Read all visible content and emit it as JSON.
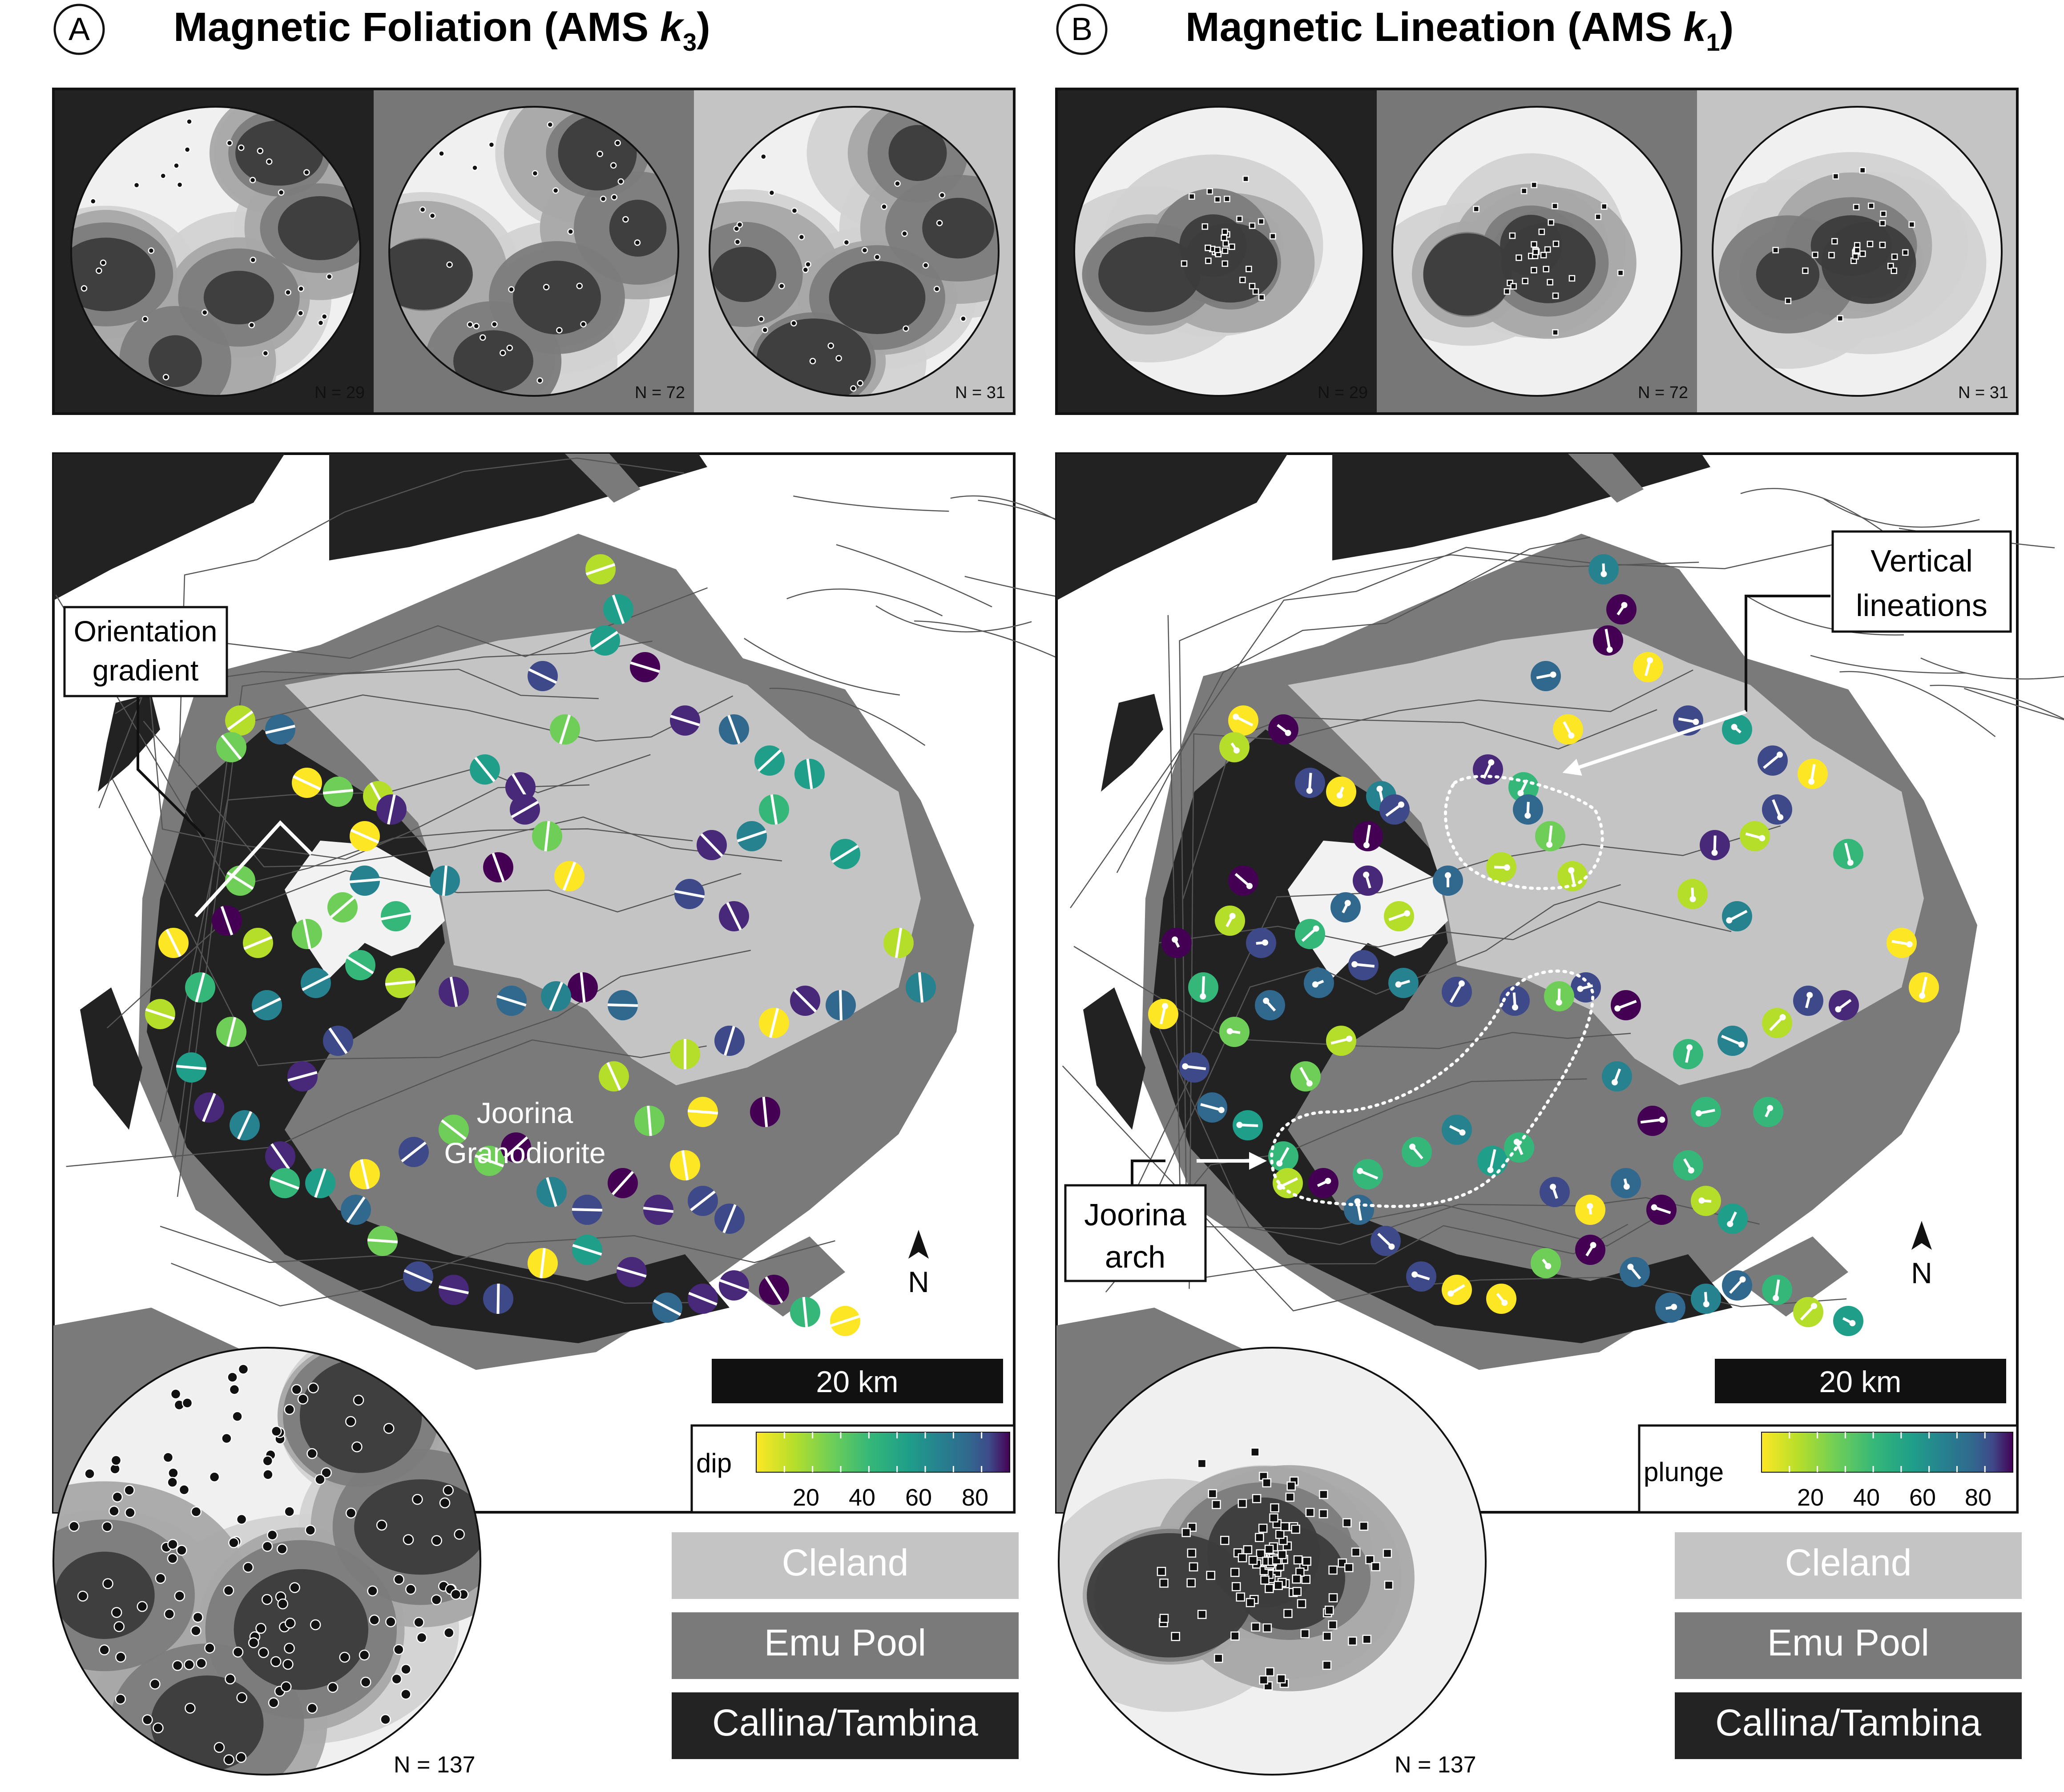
{
  "panels": [
    {
      "letter": "A",
      "title_main": "Magnetic Foliation (AMS ",
      "title_var": "k",
      "title_sub": "3",
      "title_close": ")",
      "stereonets": [
        {
          "count_label": "N = 29",
          "background": "#222222",
          "pattern": "foliation-1"
        },
        {
          "count_label": "N = 72",
          "background": "#777777",
          "pattern": "foliation-2"
        },
        {
          "count_label": "N = 31",
          "background": "#c4c4c4",
          "pattern": "foliation-3"
        }
      ],
      "marker": "circle",
      "annotations": [
        {
          "lines": [
            "Orientation",
            "gradient"
          ]
        }
      ],
      "interior_label": [
        "Joorina",
        "Granodiorite"
      ],
      "scale_bar": "20 km",
      "north": "N",
      "colorbar": {
        "label": "dip",
        "ticks": [
          "20",
          "40",
          "60",
          "80"
        ]
      },
      "summary_count": "N = 137"
    },
    {
      "letter": "B",
      "title_main": "Magnetic Lineation (AMS ",
      "title_var": "k",
      "title_sub": "1",
      "title_close": ")",
      "stereonets": [
        {
          "count_label": "N = 29",
          "background": "#222222",
          "pattern": "lineation-1"
        },
        {
          "count_label": "N = 72",
          "background": "#777777",
          "pattern": "lineation-2"
        },
        {
          "count_label": "N = 31",
          "background": "#c4c4c4",
          "pattern": "lineation-3"
        }
      ],
      "marker": "square",
      "annotations": [
        {
          "lines": [
            "Vertical",
            "lineations"
          ]
        },
        {
          "lines": [
            "Joorina",
            "arch"
          ]
        }
      ],
      "scale_bar": "20 km",
      "north": "N",
      "colorbar": {
        "label": "plunge",
        "ticks": [
          "20",
          "40",
          "60",
          "80"
        ]
      },
      "summary_count": "N = 137"
    }
  ],
  "legend": [
    {
      "label": "Cleland",
      "color": "#c4c4c4",
      "text_color": "#ffffff"
    },
    {
      "label": "Emu Pool",
      "color": "#7a7a7a",
      "text_color": "#ffffff"
    },
    {
      "label": "Callina/Tambina",
      "color": "#232323",
      "text_color": "#ffffff"
    }
  ],
  "unit_colors": {
    "Cleland": "#c4c4c4",
    "Emu Pool": "#7a7a7a",
    "Callina/Tambina": "#232323"
  },
  "colormap": "viridis"
}
